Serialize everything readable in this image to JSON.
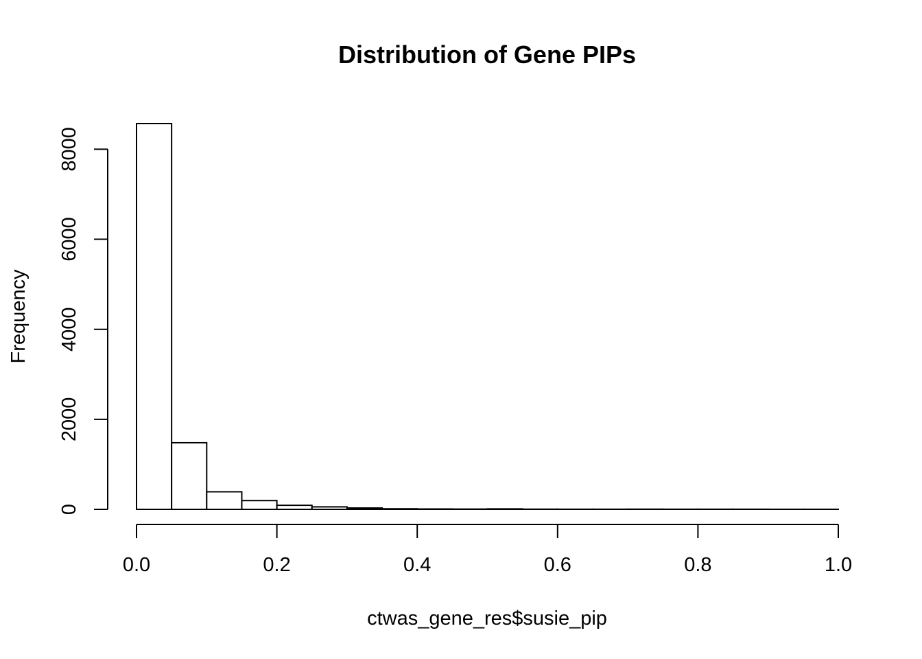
{
  "chart_data": {
    "type": "bar",
    "title": "Distribution of Gene PIPs",
    "xlabel": "ctwas_gene_res$susie_pip",
    "ylabel": "Frequency",
    "bin_edges": [
      0.0,
      0.05,
      0.1,
      0.15,
      0.2,
      0.25,
      0.3,
      0.35,
      0.4,
      0.45,
      0.5,
      0.55,
      0.6,
      0.65,
      0.7,
      0.75,
      0.8,
      0.85,
      0.9,
      0.95,
      1.0
    ],
    "values": [
      8570,
      1480,
      390,
      195,
      90,
      55,
      30,
      12,
      8,
      6,
      10,
      4,
      3,
      3,
      4,
      3,
      3,
      3,
      2,
      2
    ],
    "xlim": [
      0,
      1
    ],
    "ylim": [
      0,
      8570
    ],
    "x_ticks": [
      0,
      0.2,
      0.4,
      0.6,
      0.8,
      1
    ],
    "x_tick_labels": [
      "0.0",
      "0.2",
      "0.4",
      "0.6",
      "0.8",
      "1.0"
    ],
    "y_ticks": [
      0,
      2000,
      4000,
      6000,
      8000
    ],
    "y_tick_labels": [
      "0",
      "2000",
      "4000",
      "6000",
      "8000"
    ],
    "grid": false,
    "legend": "none"
  }
}
